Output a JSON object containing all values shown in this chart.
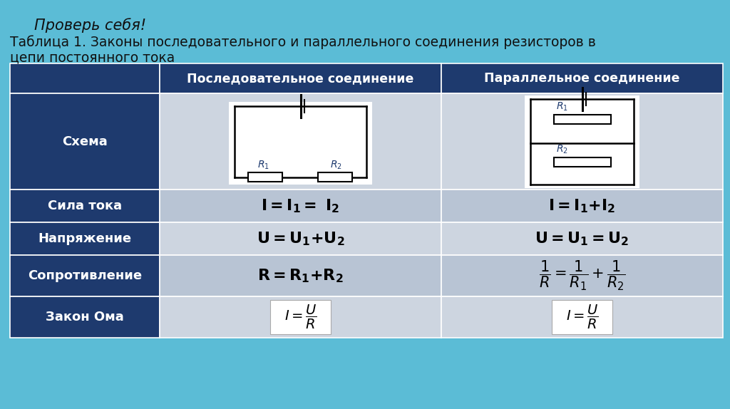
{
  "bg_color": "#5bbcd6",
  "header_title": "Проверь себя!",
  "title_line1": "Таблица 1. Законы последовательного и параллельного соединения резисторов в",
  "title_line2": "цепи постоянного тока",
  "col_header_bg": "#1e3a6e",
  "col_header_fg": "#ffffff",
  "row_header_bg": "#1e3a6e",
  "row_header_fg": "#ffffff",
  "row_light_bg": "#cdd5e0",
  "row_dark_bg": "#b8c4d4",
  "col_headers": [
    "",
    "Последовательное соединение",
    "Параллельное соединение"
  ],
  "row_labels": [
    "Схема",
    "Сила тока",
    "Напряжение",
    "Сопротивление",
    "Закон Ома"
  ]
}
